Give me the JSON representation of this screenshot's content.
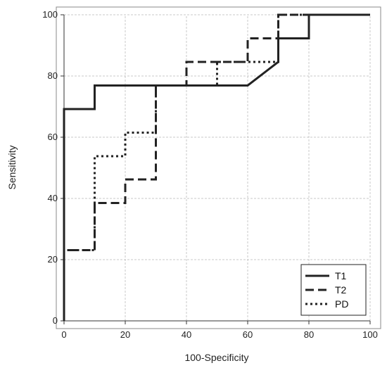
{
  "chart_data": {
    "type": "line",
    "xlabel": "100-Specificity",
    "ylabel": "Sensitivity",
    "xlim": [
      0,
      100
    ],
    "ylim": [
      0,
      100
    ],
    "xticks": [
      0,
      20,
      40,
      60,
      80,
      100
    ],
    "yticks": [
      0,
      20,
      40,
      60,
      80,
      100
    ],
    "grid": true,
    "legend_position": "bottom-right",
    "series": [
      {
        "name": "T1",
        "style": "solid",
        "x": [
          0,
          0,
          10,
          10,
          60,
          70,
          70,
          80,
          80,
          100
        ],
        "y": [
          0,
          69.2,
          69.2,
          76.9,
          76.9,
          84.6,
          92.3,
          92.3,
          100,
          100
        ]
      },
      {
        "name": "T2",
        "style": "dashed",
        "x": [
          0,
          0,
          10,
          10,
          20,
          20,
          30,
          30,
          40,
          40,
          60,
          60,
          70,
          70,
          100
        ],
        "y": [
          0,
          23.1,
          23.1,
          38.5,
          38.5,
          46.2,
          46.2,
          76.9,
          76.9,
          84.6,
          84.6,
          92.3,
          92.3,
          100,
          100
        ]
      },
      {
        "name": "PD",
        "style": "dotted",
        "x": [
          0,
          0,
          10,
          10,
          20,
          20,
          30,
          30,
          50,
          50,
          70,
          70,
          100
        ],
        "y": [
          0,
          23.1,
          23.1,
          53.8,
          53.8,
          61.5,
          61.5,
          76.9,
          76.9,
          84.6,
          84.6,
          100,
          100
        ]
      }
    ]
  }
}
